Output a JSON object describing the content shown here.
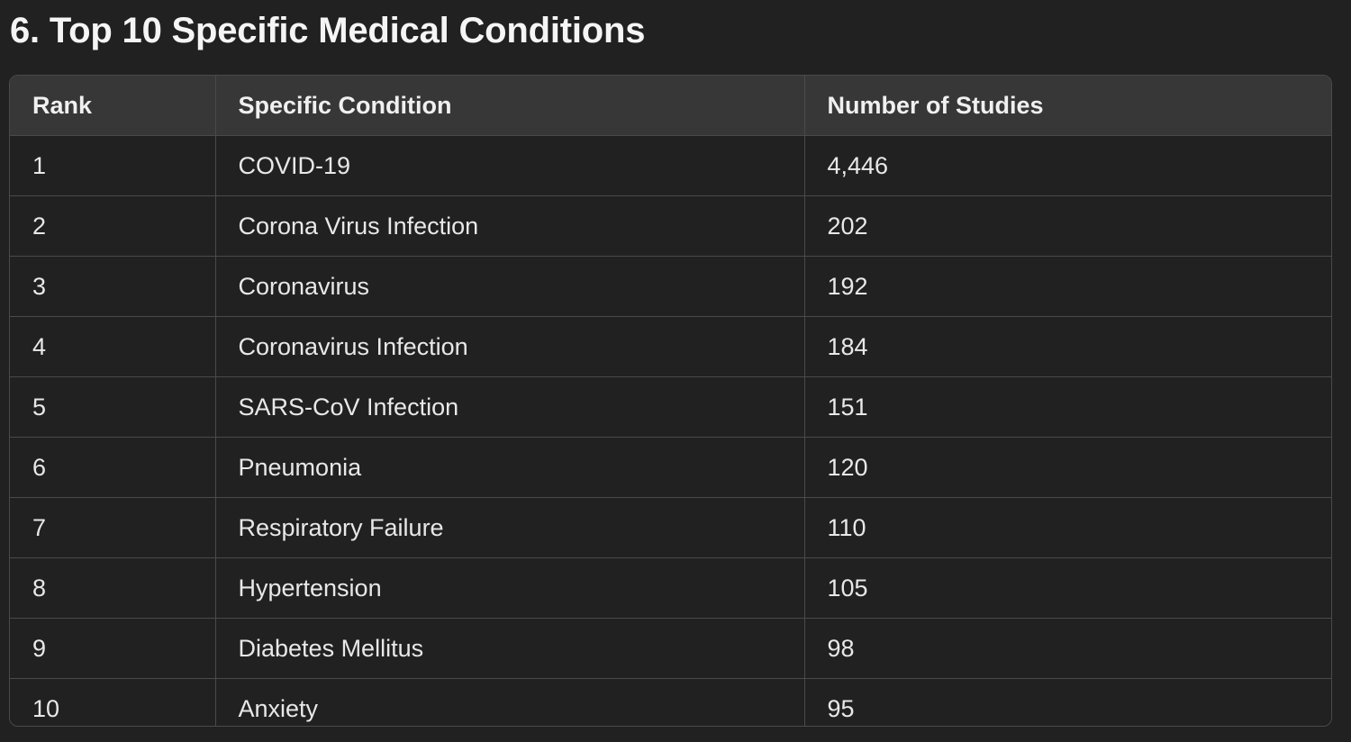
{
  "heading": "6. Top 10 Specific Medical Conditions",
  "table": {
    "headers": [
      "Rank",
      "Specific Condition",
      "Number of Studies"
    ],
    "rows": [
      [
        "1",
        "COVID-19",
        "4,446"
      ],
      [
        "2",
        "Corona Virus Infection",
        "202"
      ],
      [
        "3",
        "Coronavirus",
        "192"
      ],
      [
        "4",
        "Coronavirus Infection",
        "184"
      ],
      [
        "5",
        "SARS-CoV Infection",
        "151"
      ],
      [
        "6",
        "Pneumonia",
        "120"
      ],
      [
        "7",
        "Respiratory Failure",
        "110"
      ],
      [
        "8",
        "Hypertension",
        "105"
      ],
      [
        "9",
        "Diabetes Mellitus",
        "98"
      ],
      [
        "10",
        "Anxiety",
        "95"
      ]
    ]
  }
}
